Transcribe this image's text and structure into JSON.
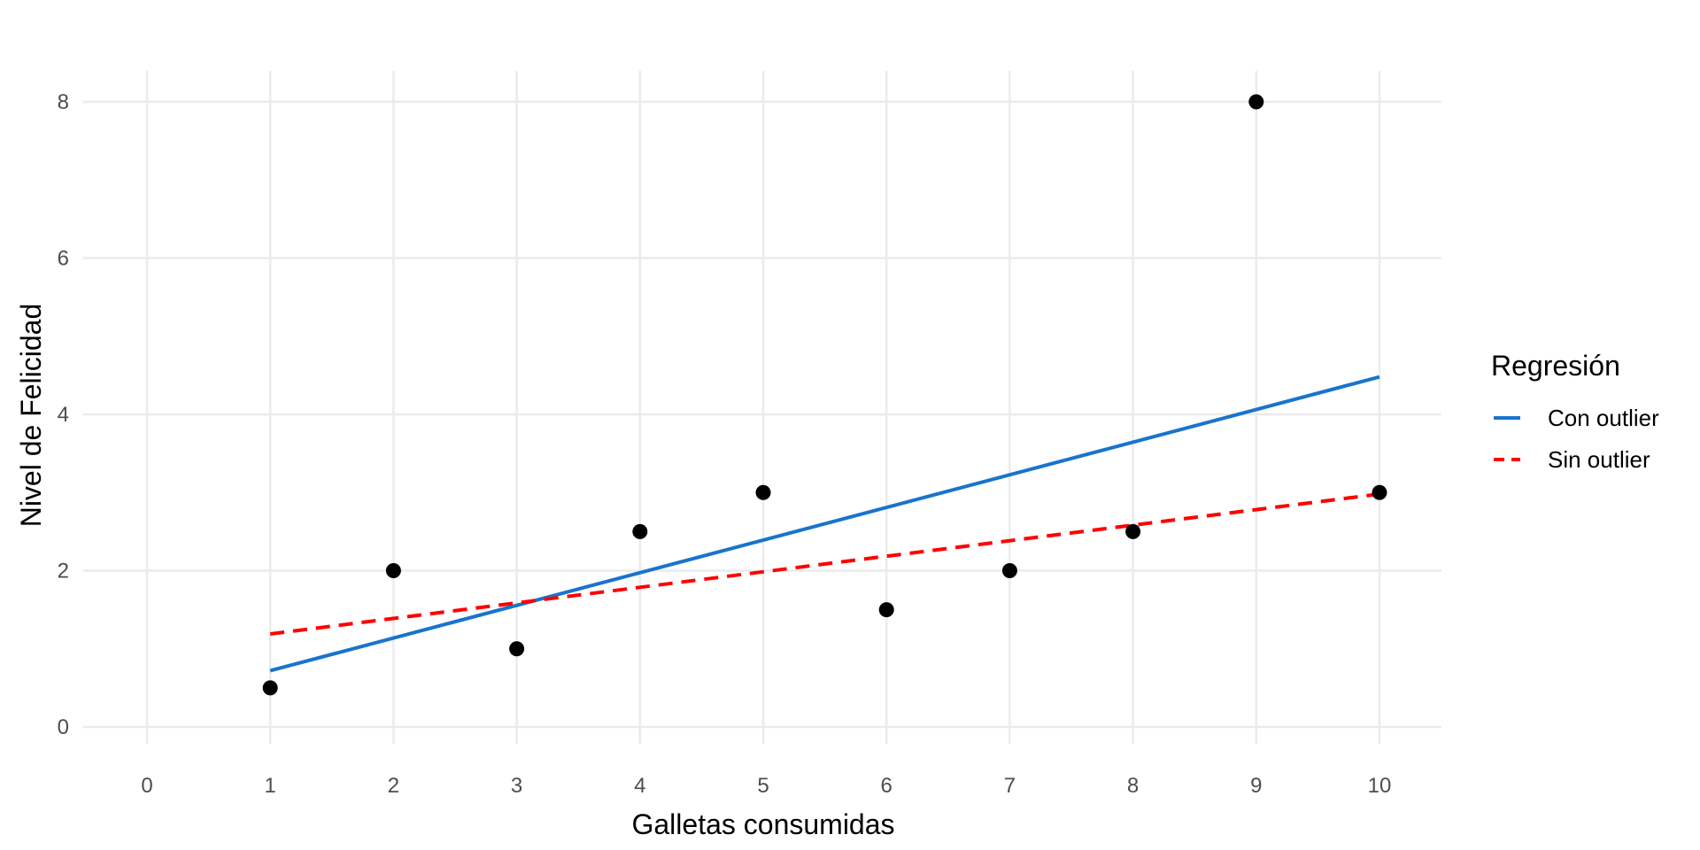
{
  "chart_data": {
    "type": "scatter",
    "xlabel": "Galletas consumidas",
    "ylabel": "Nivel de Felicidad",
    "xlim": [
      0,
      10
    ],
    "ylim": [
      0,
      8
    ],
    "x_ticks": [
      0,
      1,
      2,
      3,
      4,
      5,
      6,
      7,
      8,
      9,
      10
    ],
    "x_tick_labels": [
      "0",
      "1",
      "2",
      "3",
      "4",
      "5",
      "6",
      "7",
      "8",
      "9",
      "10"
    ],
    "y_ticks": [
      0,
      2,
      4,
      6,
      8
    ],
    "y_tick_labels": [
      "0",
      "2",
      "4",
      "6",
      "8"
    ],
    "grid": true,
    "points": {
      "x": [
        1,
        2,
        3,
        4,
        5,
        6,
        7,
        8,
        9,
        10
      ],
      "y": [
        0.5,
        2,
        1,
        2.5,
        3,
        1.5,
        2,
        2.5,
        8,
        3
      ],
      "color": "#000000"
    },
    "lines": [
      {
        "name": "Con outlier",
        "x": [
          1,
          10
        ],
        "y": [
          0.72,
          4.48
        ],
        "color": "#1874CD",
        "style": "solid"
      },
      {
        "name": "Sin outlier",
        "x": [
          1,
          10
        ],
        "y": [
          1.19,
          2.98
        ],
        "color": "#FF0000",
        "style": "dashed"
      }
    ],
    "legend": {
      "title": "Regresión",
      "position": "right",
      "items": [
        "Con outlier",
        "Sin outlier"
      ]
    }
  }
}
